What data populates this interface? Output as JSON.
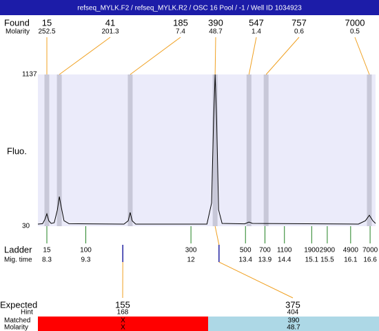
{
  "header": {
    "title": "refseq_MYLK.F2 / refseq_MYLK.R2 / OSC 16 Pool / -1 / Well ID 1034923"
  },
  "chart_data": {
    "type": "electropherogram",
    "found_label": "Found",
    "found_molarity_label": "Molarity",
    "y_label": "Fluo.",
    "ladder_label": "Ladder",
    "mig_time_label": "Mig. time",
    "ylim": [
      30,
      1137
    ],
    "yticks": [
      1137,
      30
    ],
    "xlim": [
      8.07,
      16.74
    ],
    "plot_color": "#ebebfa",
    "band_color": "#c8c8d8",
    "link_color": "#f0a020",
    "ladder_color": "#208020",
    "marker_color": "#2020a0",
    "found": {
      "sizes": [
        15,
        41,
        185,
        390,
        547,
        757,
        7000
      ],
      "molarity": [
        252.5,
        201.3,
        7.4,
        48.7,
        1.4,
        0.6,
        0.5
      ],
      "times": [
        8.3,
        8.62,
        10.44,
        12.62,
        13.49,
        13.93,
        16.58
      ]
    },
    "trace": {
      "x": [
        8.07,
        8.19,
        8.25,
        8.3,
        8.35,
        8.41,
        8.49,
        8.57,
        8.62,
        8.67,
        8.74,
        8.87,
        10.28,
        10.39,
        10.44,
        10.49,
        10.58,
        12.41,
        12.53,
        12.58,
        12.62,
        12.66,
        12.71,
        12.8,
        13.38,
        13.49,
        13.58,
        16.3,
        16.48,
        16.58,
        16.67,
        16.74
      ],
      "y": [
        45,
        48,
        80,
        120,
        70,
        50,
        55,
        150,
        246,
        170,
        70,
        48,
        45,
        70,
        130,
        70,
        45,
        45,
        200,
        800,
        1137,
        800,
        150,
        50,
        47,
        60,
        50,
        45,
        70,
        110,
        70,
        50
      ]
    },
    "ladder": {
      "sizes": [
        15,
        100,
        300,
        500,
        700,
        1100,
        1900,
        2900,
        4900,
        7000
      ],
      "times": [
        8.3,
        9.3,
        12,
        13.4,
        13.9,
        14.4,
        15.1,
        15.5,
        16.1,
        16.6
      ]
    }
  },
  "expected": {
    "label": "Expected",
    "hint_label": "Hint",
    "matched_label": "Matched",
    "molarity_label": "Molarity",
    "sizes": [
      155,
      375
    ],
    "times": [
      10.25,
      12.72
    ],
    "hint": [
      168,
      404
    ],
    "matched": [
      "X",
      390
    ],
    "molarity": [
      "X",
      48.7
    ],
    "colors": [
      "#ff0000",
      "#add8e6"
    ]
  }
}
